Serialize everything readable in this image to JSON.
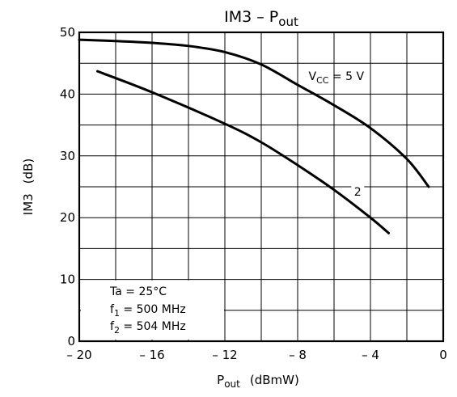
{
  "chart_data": {
    "type": "line",
    "title": "IM3 – Pout",
    "title_parts": {
      "base": "IM3  –  P",
      "sub": "out"
    },
    "xlabel_parts": {
      "base": "P",
      "sub": "out",
      "unit": "(dBmW)"
    },
    "ylabel_parts": {
      "base": "IM3",
      "unit": "(dB)"
    },
    "xlim": [
      -20,
      0
    ],
    "ylim": [
      0,
      50
    ],
    "x_ticks": [
      -20,
      -16,
      -12,
      -8,
      -4,
      0
    ],
    "x_tick_labels": [
      "– 20",
      "– 16",
      "– 12",
      "– 8",
      "– 4",
      "0"
    ],
    "y_ticks": [
      0,
      10,
      20,
      30,
      40,
      50
    ],
    "y_tick_labels": [
      "0",
      "10",
      "20",
      "30",
      "40",
      "50"
    ],
    "grid": true,
    "series": [
      {
        "label_parts": {
          "base": "V",
          "sub": "CC",
          "tail": " = 5 V"
        },
        "points": [
          [
            -20,
            48.8
          ],
          [
            -18,
            48.6
          ],
          [
            -16,
            48.3
          ],
          [
            -14,
            47.8
          ],
          [
            -12,
            46.8
          ],
          [
            -10,
            44.8
          ],
          [
            -8,
            41.5
          ],
          [
            -6,
            38.2
          ],
          [
            -4,
            34.5
          ],
          [
            -2,
            29.5
          ],
          [
            -0.8,
            25
          ]
        ]
      },
      {
        "label_parts": {
          "base": "2"
        },
        "points": [
          [
            -19,
            43.7
          ],
          [
            -16,
            40.3
          ],
          [
            -12,
            35.2
          ],
          [
            -10,
            32.2
          ],
          [
            -8,
            28.5
          ],
          [
            -6,
            24.5
          ],
          [
            -4,
            20
          ],
          [
            -3,
            17.5
          ]
        ]
      }
    ],
    "annotations": [
      {
        "base": "Ta  =  25°C"
      },
      {
        "base": "f",
        "sub": "1",
        "tail": "  =  500 MHz"
      },
      {
        "base": "f",
        "sub": "2",
        "tail": "  =  504 MHz"
      }
    ]
  }
}
